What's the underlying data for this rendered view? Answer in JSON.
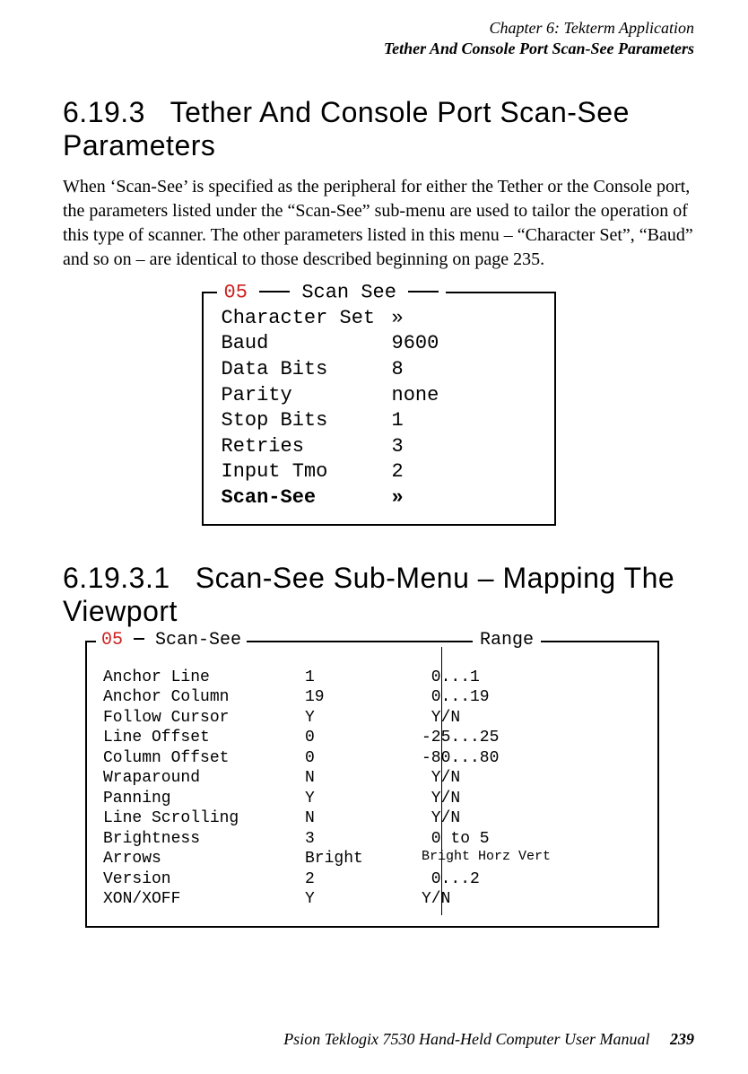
{
  "header": {
    "line1": "Chapter 6: Tekterm Application",
    "line2": "Tether And Console Port Scan-See Parameters"
  },
  "section1": {
    "number": "6.19.3",
    "title": "Tether And Console Port Scan-See Parameters",
    "body": "When ‘Scan-See’ is specified as the peripheral for either the Tether or the Console port, the parameters listed under the “Scan-See” sub-menu are used to tailor the operation of this type of scanner. The other parameters listed in this menu – “Character Set”, “Baud” and so on – are identical to those described beginning on page 235."
  },
  "menu1": {
    "box_number": "05",
    "box_title": "Scan See",
    "rows": [
      {
        "key": "Character Set",
        "val": "»",
        "bold": false
      },
      {
        "key": "Baud",
        "val": "9600",
        "bold": false
      },
      {
        "key": "Data Bits",
        "val": "8",
        "bold": false
      },
      {
        "key": "Parity",
        "val": "none",
        "bold": false
      },
      {
        "key": "Stop Bits",
        "val": "1",
        "bold": false
      },
      {
        "key": "Retries",
        "val": "3",
        "bold": false
      },
      {
        "key": "Input Tmo",
        "val": "2",
        "bold": false
      },
      {
        "key": "Scan-See",
        "val": "»",
        "bold": true
      }
    ]
  },
  "section2": {
    "number": "6.19.3.1",
    "title": "Scan-See Sub-Menu – Mapping The Viewport"
  },
  "menu2": {
    "box_number": "05",
    "box_title": "Scan-See",
    "right_label": "Range",
    "rows": [
      {
        "key": "Anchor Line",
        "val": "1",
        "range": " 0...1"
      },
      {
        "key": "Anchor Column",
        "val": "19",
        "range": " 0...19"
      },
      {
        "key": "Follow Cursor",
        "val": "Y",
        "range": " Y/N"
      },
      {
        "key": "Line Offset",
        "val": "0",
        "range": "-25...25"
      },
      {
        "key": "Column Offset",
        "val": "0",
        "range": "-80...80"
      },
      {
        "key": "Wraparound",
        "val": "N",
        "range": " Y/N"
      },
      {
        "key": "Panning",
        "val": "Y",
        "range": " Y/N"
      },
      {
        "key": "Line Scrolling",
        "val": "N",
        "range": " Y/N"
      },
      {
        "key": "Brightness",
        "val": "3",
        "range": " 0 to 5"
      },
      {
        "key": "Arrows",
        "val": "Bright",
        "range": "Bright Horz Vert",
        "range_small": true
      },
      {
        "key": "Version",
        "val": "2",
        "range": " 0...2"
      },
      {
        "key": "XON/XOFF",
        "val": "Y",
        "range": "Y/N"
      }
    ]
  },
  "footer": {
    "text": "Psion Teklogix 7530 Hand-Held Computer User Manual",
    "page": "239"
  },
  "colors": {
    "accent_number": "#cc2222",
    "text": "#000000",
    "background": "#ffffff"
  }
}
